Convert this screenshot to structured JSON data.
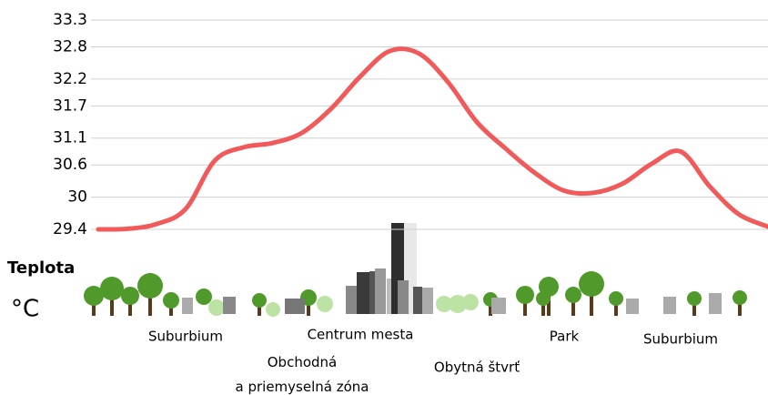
{
  "chart_data": {
    "type": "line",
    "y_label": "Teplota",
    "y_unit": "°C",
    "categories": [
      null,
      null,
      null,
      "Suburbium",
      null,
      null,
      null,
      "Obchodná a priemyselná zóna",
      null,
      "Centrum mesta",
      null,
      null,
      null,
      "Obytná štvrť",
      null,
      null,
      "Park",
      null,
      null,
      null,
      "Suburbium",
      null,
      null,
      null
    ],
    "series": [
      {
        "color": "#f05a5a",
        "values": [
          29.4,
          29.41,
          29.5,
          29.78,
          30.68,
          30.93,
          31.01,
          31.2,
          31.65,
          32.25,
          32.72,
          32.68,
          32.15,
          31.4,
          30.9,
          30.45,
          30.12,
          30.08,
          30.25,
          30.62,
          30.85,
          30.2,
          29.68,
          29.45
        ]
      }
    ],
    "ylim": [
      29.4,
      33.3
    ],
    "yticks": [
      29.4,
      30.0,
      30.6,
      31.1,
      31.7,
      32.2,
      32.8,
      33.3
    ],
    "grid": true
  }
}
